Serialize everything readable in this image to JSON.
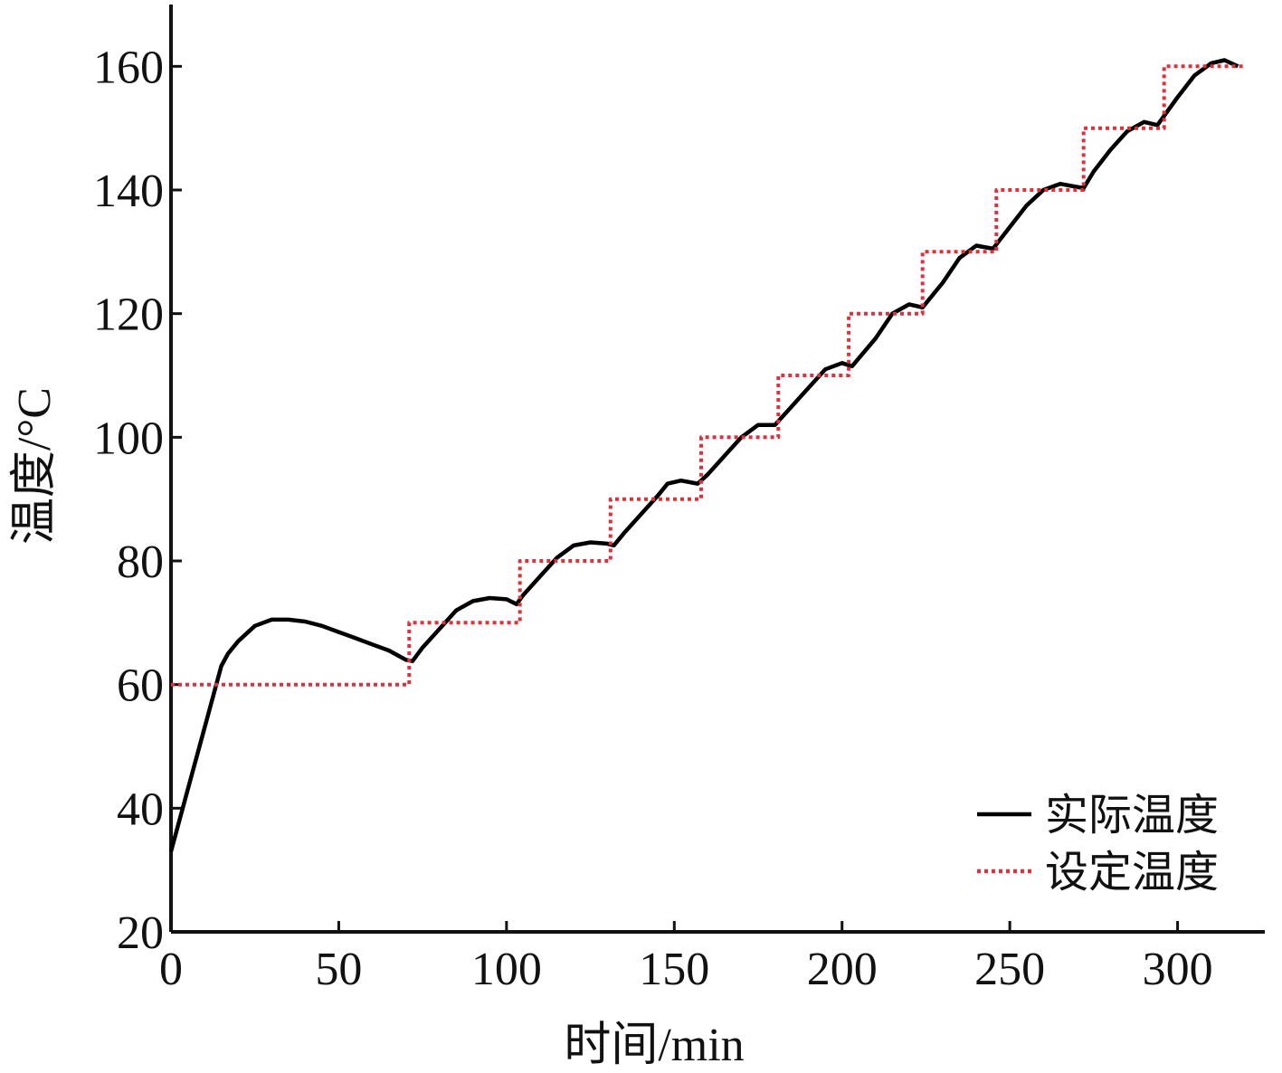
{
  "chart_data": {
    "type": "line",
    "xlabel": "时间/min",
    "ylabel": "温度/°C",
    "xlim": [
      0,
      326
    ],
    "ylim": [
      20,
      170
    ],
    "xticks": [
      0,
      50,
      100,
      150,
      200,
      250,
      300
    ],
    "yticks": [
      20,
      40,
      60,
      80,
      100,
      120,
      140,
      160
    ],
    "grid": false,
    "legend": "lower right",
    "series": [
      {
        "name": "实际温度",
        "color": "#000000",
        "style": "solid",
        "x": [
          0,
          5,
          10,
          15,
          17,
          20,
          25,
          30,
          35,
          40,
          45,
          50,
          55,
          60,
          65,
          70,
          72,
          75,
          80,
          85,
          90,
          95,
          100,
          103,
          105,
          110,
          115,
          120,
          125,
          130,
          132,
          135,
          140,
          145,
          148,
          152,
          157,
          160,
          165,
          170,
          175,
          180,
          185,
          190,
          195,
          200,
          203,
          210,
          215,
          220,
          224,
          230,
          235,
          240,
          245,
          250,
          255,
          260,
          265,
          270,
          272,
          275,
          280,
          285,
          290,
          294,
          300,
          305,
          310,
          314,
          318
        ],
        "values": [
          33,
          43,
          53,
          63,
          65,
          67,
          69.5,
          70.5,
          70.5,
          70.2,
          69.5,
          68.5,
          67.5,
          66.5,
          65.5,
          64,
          63.8,
          66,
          69,
          72,
          73.5,
          74,
          73.8,
          73,
          74.5,
          77.5,
          80.5,
          82.5,
          83,
          82.8,
          82.5,
          84.5,
          87.5,
          90.5,
          92.5,
          93,
          92.5,
          94,
          97,
          100,
          102,
          102,
          105,
          108,
          111,
          112,
          111.5,
          116,
          120,
          121.5,
          121,
          125,
          129,
          131,
          130.5,
          134,
          137.5,
          140,
          141,
          140.5,
          140.3,
          143,
          146.5,
          149.5,
          151,
          150.5,
          155,
          158.5,
          160.5,
          161,
          160
        ]
      },
      {
        "name": "设定温度",
        "color": "#e0303c",
        "style": "dotted",
        "x": [
          0,
          71,
          71,
          104,
          104,
          131,
          131,
          158,
          158,
          181,
          181,
          202,
          202,
          224,
          224,
          246,
          246,
          272,
          272,
          296,
          296,
          320
        ],
        "values": [
          60,
          60,
          70,
          70,
          80,
          80,
          90,
          90,
          100,
          100,
          110,
          110,
          120,
          120,
          130,
          130,
          140,
          140,
          150,
          150,
          160,
          160
        ]
      }
    ]
  }
}
